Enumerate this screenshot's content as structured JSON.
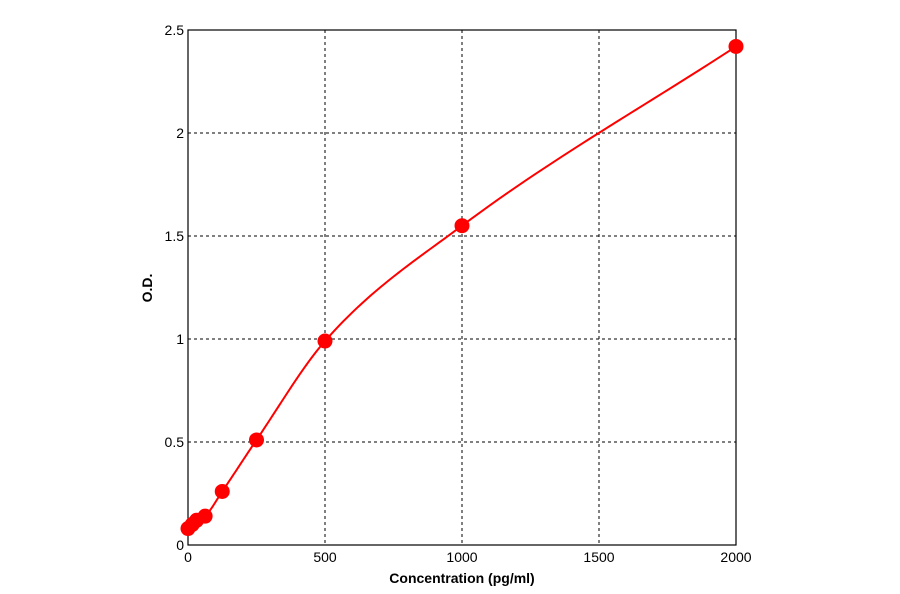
{
  "chart_data": {
    "type": "scatter",
    "title": "",
    "xlabel": "Concentration (pg/ml)",
    "ylabel": "O.D.",
    "xlim": [
      0,
      2000
    ],
    "ylim": [
      0,
      2.5
    ],
    "x_ticks": [
      0,
      500,
      1000,
      1500,
      2000
    ],
    "y_ticks": [
      0,
      0.5,
      1,
      1.5,
      2,
      2.5
    ],
    "x_tick_labels": [
      "0",
      "500",
      "1000",
      "1500",
      "2000"
    ],
    "y_tick_labels": [
      "0",
      "0.5",
      "1",
      "1.5",
      "2",
      "2.5"
    ],
    "grid": true,
    "legend": "none",
    "series": [
      {
        "x": [
          0,
          15.6,
          31.25,
          62.5,
          125,
          250,
          500,
          1000,
          2000
        ],
        "y": [
          0.08,
          0.1,
          0.12,
          0.14,
          0.26,
          0.51,
          0.99,
          1.55,
          2.42
        ],
        "color": "#ff0000",
        "fit_curve": true
      }
    ]
  }
}
